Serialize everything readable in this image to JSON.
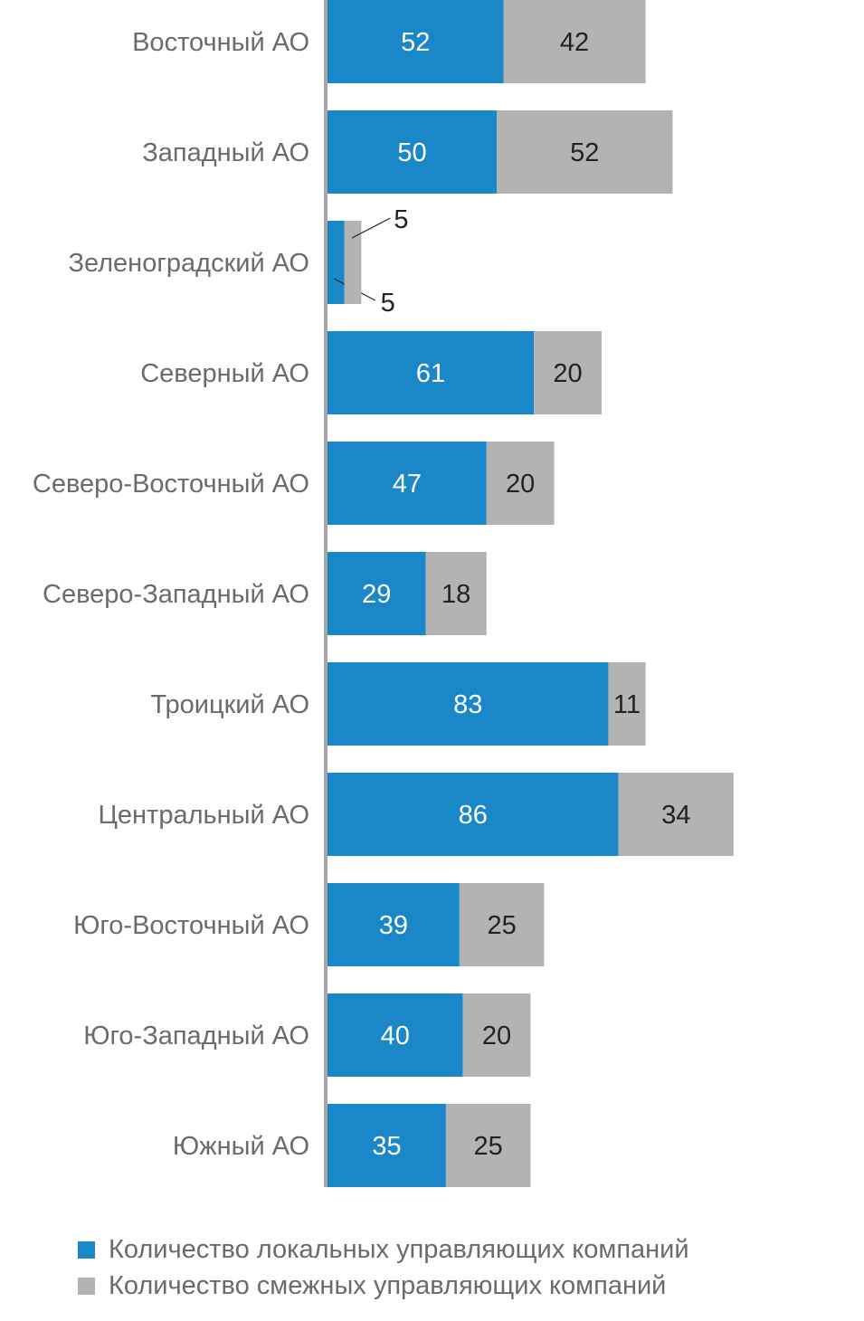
{
  "chart_data": {
    "type": "bar",
    "orientation": "horizontal",
    "stacked": true,
    "categories": [
      "Восточный АО",
      "Западный АО",
      "Зеленоградский АО",
      "Северный АО",
      "Северо-Восточный АО",
      "Северо-Западный АО",
      "Троицкий АО",
      "Центральный АО",
      "Юго-Восточный АО",
      "Юго-Западный АО",
      "Южный АО"
    ],
    "series": [
      {
        "name": "Количество локальных управляющих компаний",
        "color": "#1a87c9",
        "values": [
          52,
          50,
          5,
          61,
          47,
          29,
          83,
          86,
          39,
          40,
          35
        ]
      },
      {
        "name": "Количество смежных управляющих компаний",
        "color": "#b3b3b3",
        "values": [
          42,
          52,
          5,
          20,
          20,
          18,
          11,
          34,
          25,
          20,
          25
        ]
      }
    ],
    "legend": "bottom-left",
    "grid": false
  }
}
